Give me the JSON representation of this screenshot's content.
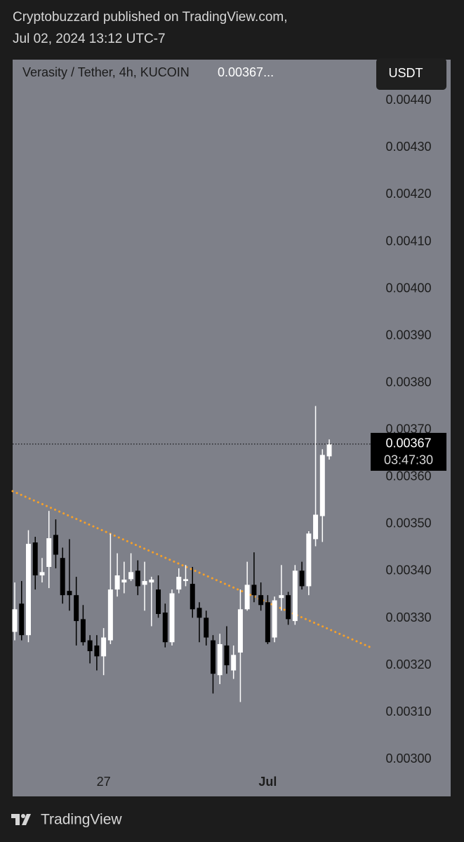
{
  "header": {
    "publisher": "Cryptobuzzard published on TradingView.com,",
    "date": "Jul 02, 2024 13:12 UTC-7"
  },
  "chart_data": {
    "type": "candlestick",
    "title": "Verasity / Tether, 4h, KUCOIN",
    "title_price": "0.00367...",
    "currency": "USDT",
    "categories": [
      null,
      null,
      null,
      null,
      null,
      null,
      null,
      null,
      null,
      null,
      null,
      null,
      null,
      "27",
      null,
      null,
      null,
      null,
      null,
      null,
      null,
      null,
      null,
      null,
      null,
      null,
      null,
      null,
      null,
      null,
      null,
      null,
      null,
      null,
      null,
      null,
      null,
      "Jul",
      null,
      null,
      null,
      null,
      null,
      null,
      null,
      null,
      null
    ],
    "open": [
      0.003271,
      0.003331,
      0.003264,
      0.003461,
      0.003391,
      0.003409,
      0.003477,
      0.003428,
      0.003358,
      0.003349,
      0.003298,
      0.003253,
      0.003242,
      0.003219,
      0.003253,
      0.003361,
      0.003376,
      0.003383,
      0.003401,
      0.003371,
      0.003376,
      0.003361,
      0.003312,
      0.003249,
      0.003361,
      0.003379,
      0.003373,
      0.003322,
      0.003301,
      0.003253,
      0.003179,
      0.003242,
      0.003189,
      0.003227,
      0.003319,
      0.003371,
      0.003349,
      0.003334,
      0.003259,
      0.003343,
      0.003349,
      0.003294,
      0.003401,
      0.003368,
      0.003468,
      0.003517,
      0.003644
    ],
    "high": [
      0.003376,
      0.003379,
      0.003487,
      0.003473,
      0.003428,
      0.003528,
      0.00351,
      0.00345,
      0.003468,
      0.003388,
      0.003328,
      0.003264,
      0.003264,
      0.003279,
      0.00348,
      0.003438,
      0.00342,
      0.003438,
      0.003423,
      0.00342,
      0.003388,
      0.003391,
      0.003331,
      0.003361,
      0.003406,
      0.003413,
      0.003409,
      0.003334,
      0.003316,
      0.003264,
      0.003267,
      0.003283,
      0.003242,
      0.003361,
      0.00342,
      0.00344,
      0.003376,
      0.003349,
      0.003346,
      0.003413,
      0.003356,
      0.003413,
      0.00342,
      0.003485,
      0.003751,
      0.003659,
      0.00368
    ],
    "low": [
      0.003253,
      0.003253,
      0.003249,
      0.003361,
      0.003376,
      0.003364,
      0.003406,
      0.003331,
      0.003316,
      0.003242,
      0.003242,
      0.003204,
      0.003189,
      0.003179,
      0.003245,
      0.003346,
      0.003353,
      0.003379,
      0.003349,
      0.003316,
      0.003283,
      0.003301,
      0.003238,
      0.003242,
      0.003353,
      0.003368,
      0.003301,
      0.003249,
      0.003242,
      0.00314,
      0.00316,
      0.003182,
      0.003171,
      0.003122,
      0.003316,
      0.003334,
      0.003316,
      0.003245,
      0.003249,
      0.003316,
      0.003286,
      0.003286,
      0.003361,
      0.003349,
      0.003453,
      0.003462,
      0.003637
    ],
    "close": [
      0.003319,
      0.003264,
      0.003458,
      0.003391,
      0.003398,
      0.00347,
      0.003435,
      0.003349,
      0.003349,
      0.003294,
      0.003249,
      0.00323,
      0.003219,
      0.003259,
      0.003361,
      0.003391,
      0.003382,
      0.003398,
      0.003368,
      0.003379,
      0.003382,
      0.003309,
      0.003249,
      0.003353,
      0.003388,
      0.003383,
      0.003319,
      0.003301,
      0.003259,
      0.003182,
      0.003245,
      0.0032,
      0.003222,
      0.003319,
      0.003371,
      0.003349,
      0.003328,
      0.003249,
      0.003338,
      0.003349,
      0.003298,
      0.003401,
      0.003368,
      0.00348,
      0.00352,
      0.003647,
      0.00367
    ],
    "up_color": "#ffffff",
    "down_color": "#000000",
    "ylim": [
      0.002981,
      0.004487
    ],
    "yticks": [
      {
        "value": 0.003,
        "label": "0.00300"
      },
      {
        "value": 0.0031,
        "label": "0.00310"
      },
      {
        "value": 0.0032,
        "label": "0.00320"
      },
      {
        "value": 0.0033,
        "label": "0.00330"
      },
      {
        "value": 0.0034,
        "label": "0.00340"
      },
      {
        "value": 0.0035,
        "label": "0.00350"
      },
      {
        "value": 0.0036,
        "label": "0.00360"
      },
      {
        "value": 0.0037,
        "label": "0.00370"
      },
      {
        "value": 0.0038,
        "label": "0.00380"
      },
      {
        "value": 0.0039,
        "label": "0.00390"
      },
      {
        "value": 0.004,
        "label": "0.00400"
      },
      {
        "value": 0.0041,
        "label": "0.00410"
      },
      {
        "value": 0.0042,
        "label": "0.00420"
      },
      {
        "value": 0.0043,
        "label": "0.00430"
      },
      {
        "value": 0.0044,
        "label": "0.00440"
      }
    ],
    "last_price": 0.00367,
    "countdown": "03:47:30",
    "trendline": {
      "color": "#f5a02a",
      "values": [
        0.00357,
        0.003238
      ]
    }
  },
  "footer": {
    "brand": "TradingView"
  }
}
